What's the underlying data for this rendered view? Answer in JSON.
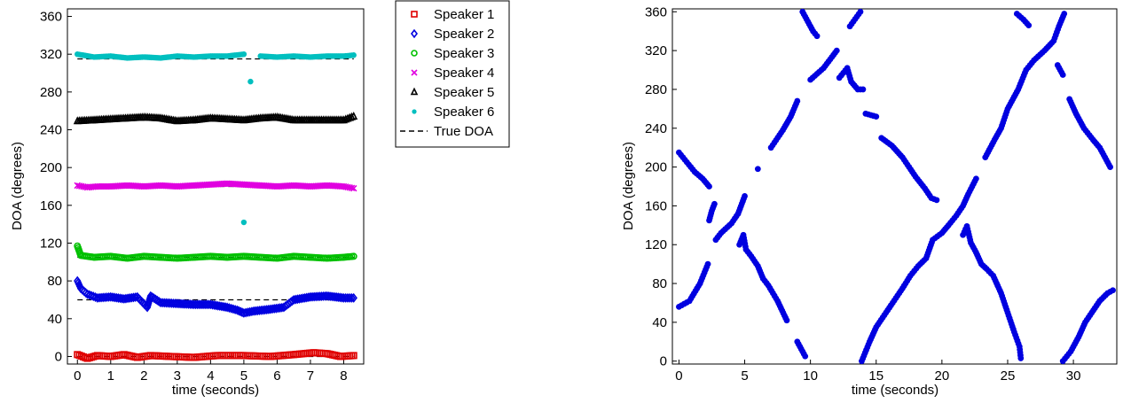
{
  "chart_data": [
    {
      "type": "scatter",
      "xlabel": "time (seconds)",
      "ylabel": "DOA (degrees)",
      "xlim": [
        -0.3,
        8.6
      ],
      "ylim": [
        -8,
        368
      ],
      "xticks": [
        0,
        1,
        2,
        3,
        4,
        5,
        6,
        7,
        8
      ],
      "yticks": [
        0,
        40,
        80,
        120,
        160,
        200,
        240,
        280,
        320,
        360
      ],
      "legend_position": "outside-right",
      "legend": [
        {
          "label": "Speaker 1",
          "marker": "square",
          "color": "#e00000"
        },
        {
          "label": "Speaker 2",
          "marker": "diamond",
          "color": "#0000e0"
        },
        {
          "label": "Speaker 3",
          "marker": "circle",
          "color": "#00c000"
        },
        {
          "label": "Speaker 4",
          "marker": "x",
          "color": "#e000e0"
        },
        {
          "label": "Speaker 5",
          "marker": "triangle",
          "color": "#000000"
        },
        {
          "label": "Speaker 6",
          "marker": "dot",
          "color": "#00bfbf"
        },
        {
          "label": "True DOA",
          "marker": "dashed-line",
          "color": "#000000"
        }
      ],
      "true_doa": [
        0,
        60,
        105,
        180,
        250,
        315
      ],
      "series": [
        {
          "color": "#e00000",
          "marker": "square",
          "points": [
            [
              0,
              2
            ],
            [
              0.3,
              -2
            ],
            [
              0.6,
              1
            ],
            [
              1,
              0
            ],
            [
              1.4,
              2
            ],
            [
              1.8,
              -1
            ],
            [
              2.2,
              1
            ],
            [
              2.8,
              0
            ],
            [
              3.5,
              -1
            ],
            [
              4.2,
              1
            ],
            [
              5,
              1
            ],
            [
              5.8,
              0
            ],
            [
              6.5,
              2
            ],
            [
              7.1,
              4
            ],
            [
              7.5,
              3
            ],
            [
              7.9,
              0
            ],
            [
              8.3,
              1
            ]
          ]
        },
        {
          "color": "#0000e0",
          "marker": "diamond",
          "points": [
            [
              0,
              80
            ],
            [
              0.1,
              72
            ],
            [
              0.3,
              66
            ],
            [
              0.6,
              62
            ],
            [
              1,
              63
            ],
            [
              1.4,
              61
            ],
            [
              1.8,
              63
            ],
            [
              2.1,
              52
            ],
            [
              2.2,
              64
            ],
            [
              2.5,
              57
            ],
            [
              3,
              56
            ],
            [
              3.5,
              55
            ],
            [
              4,
              55
            ],
            [
              4.5,
              52
            ],
            [
              4.8,
              49
            ],
            [
              5,
              46
            ],
            [
              5.3,
              48
            ],
            [
              5.8,
              50
            ],
            [
              6.2,
              52
            ],
            [
              6.5,
              60
            ],
            [
              7,
              63
            ],
            [
              7.5,
              64
            ],
            [
              8,
              62
            ],
            [
              8.3,
              62
            ]
          ]
        },
        {
          "color": "#00c000",
          "marker": "circle",
          "points": [
            [
              0,
              117
            ],
            [
              0.1,
              107
            ],
            [
              0.5,
              105
            ],
            [
              1,
              106
            ],
            [
              1.5,
              104
            ],
            [
              2,
              106
            ],
            [
              2.5,
              105
            ],
            [
              3,
              104
            ],
            [
              3.5,
              105
            ],
            [
              4,
              106
            ],
            [
              4.5,
              105
            ],
            [
              5,
              106
            ],
            [
              5.5,
              105
            ],
            [
              6,
              104
            ],
            [
              6.5,
              106
            ],
            [
              7,
              105
            ],
            [
              7.5,
              104
            ],
            [
              8,
              105
            ],
            [
              8.3,
              106
            ]
          ]
        },
        {
          "color": "#e000e0",
          "marker": "x",
          "points": [
            [
              0,
              181
            ],
            [
              0.3,
              179
            ],
            [
              0.6,
              180
            ],
            [
              1,
              180
            ],
            [
              1.5,
              181
            ],
            [
              2,
              180
            ],
            [
              2.5,
              181
            ],
            [
              3,
              180
            ],
            [
              3.5,
              181
            ],
            [
              4,
              182
            ],
            [
              4.5,
              183
            ],
            [
              5,
              182
            ],
            [
              5.5,
              181
            ],
            [
              6,
              180
            ],
            [
              6.5,
              181
            ],
            [
              7,
              180
            ],
            [
              7.5,
              181
            ],
            [
              8,
              180
            ],
            [
              8.3,
              178
            ]
          ]
        },
        {
          "color": "#000000",
          "marker": "triangle",
          "points": [
            [
              0,
              249
            ],
            [
              0.5,
              250
            ],
            [
              1,
              251
            ],
            [
              1.5,
              252
            ],
            [
              2,
              253
            ],
            [
              2.5,
              252
            ],
            [
              3,
              249
            ],
            [
              3.5,
              250
            ],
            [
              4,
              252
            ],
            [
              4.5,
              251
            ],
            [
              5,
              250
            ],
            [
              5.5,
              252
            ],
            [
              6,
              253
            ],
            [
              6.5,
              250
            ],
            [
              7,
              250
            ],
            [
              7.5,
              250
            ],
            [
              8,
              250
            ],
            [
              8.3,
              254
            ]
          ]
        },
        {
          "color": "#00bfbf",
          "marker": "dot",
          "points": [
            [
              0,
              320
            ],
            [
              0.5,
              317
            ],
            [
              1,
              318
            ],
            [
              1.5,
              316
            ],
            [
              2,
              317
            ],
            [
              2.5,
              316
            ],
            [
              3,
              318
            ],
            [
              3.5,
              317
            ],
            [
              4,
              318
            ],
            [
              4.5,
              318
            ],
            [
              5,
              320
            ],
            [
              5.2,
              291
            ],
            [
              5,
              142
            ],
            [
              5.5,
              318
            ],
            [
              6,
              317
            ],
            [
              6.5,
              318
            ],
            [
              7,
              317
            ],
            [
              7.5,
              318
            ],
            [
              8,
              318
            ],
            [
              8.3,
              319
            ]
          ]
        }
      ]
    },
    {
      "type": "scatter",
      "xlabel": "time (seconds)",
      "ylabel": "DOA (degrees)",
      "xlim": [
        -0.5,
        33.3
      ],
      "ylim": [
        -3,
        363
      ],
      "xticks": [
        0,
        5,
        10,
        15,
        20,
        25,
        30
      ],
      "yticks": [
        0,
        40,
        80,
        120,
        160,
        200,
        240,
        280,
        320,
        360
      ],
      "series": [
        {
          "color": "#0000e0",
          "marker": "dot",
          "points": [
            [
              0,
              56
            ],
            [
              0.8,
              62
            ],
            [
              1.6,
              80
            ],
            [
              2.2,
              100
            ],
            [
              2.8,
              125
            ],
            [
              3.2,
              132
            ],
            [
              4,
              142
            ],
            [
              4.5,
              152
            ],
            [
              5,
              170
            ],
            [
              6,
              198
            ],
            [
              7,
              220
            ],
            [
              7.9,
              238
            ],
            [
              8.5,
              252
            ],
            [
              9,
              268
            ],
            [
              10,
              290
            ],
            [
              11,
              302
            ],
            [
              12,
              320
            ],
            [
              13,
              345
            ],
            [
              13.8,
              360
            ],
            [
              0,
              215
            ],
            [
              0.6,
              205
            ],
            [
              1.2,
              195
            ],
            [
              1.8,
              188
            ],
            [
              2.3,
              180
            ],
            [
              2.3,
              145
            ],
            [
              2.5,
              155
            ],
            [
              2.7,
              162
            ],
            [
              4.6,
              120
            ],
            [
              4.9,
              130
            ],
            [
              5.1,
              115
            ],
            [
              5.5,
              108
            ],
            [
              6,
              98
            ],
            [
              6.4,
              85
            ],
            [
              6.8,
              78
            ],
            [
              7.5,
              62
            ],
            [
              8.2,
              42
            ],
            [
              9,
              20
            ],
            [
              9.6,
              5
            ],
            [
              9.4,
              360
            ],
            [
              9.8,
              350
            ],
            [
              10.2,
              340
            ],
            [
              10.5,
              335
            ],
            [
              12.2,
              292
            ],
            [
              12.8,
              302
            ],
            [
              13.1,
              288
            ],
            [
              13.6,
              280
            ],
            [
              14,
              280
            ],
            [
              14.2,
              255
            ],
            [
              15,
              252
            ],
            [
              15.4,
              230
            ],
            [
              16.2,
              222
            ],
            [
              17,
              210
            ],
            [
              18,
              190
            ],
            [
              18.7,
              178
            ],
            [
              19.2,
              168
            ],
            [
              19.6,
              166
            ],
            [
              13.9,
              0
            ],
            [
              14.5,
              20
            ],
            [
              15,
              35
            ],
            [
              15.5,
              45
            ],
            [
              16,
              55
            ],
            [
              16.5,
              65
            ],
            [
              17,
              75
            ],
            [
              17.6,
              88
            ],
            [
              18.2,
              98
            ],
            [
              18.8,
              106
            ],
            [
              19.3,
              125
            ],
            [
              20,
              132
            ],
            [
              20.5,
              140
            ],
            [
              21.1,
              150
            ],
            [
              21.6,
              160
            ],
            [
              22,
              172
            ],
            [
              22.6,
              188
            ],
            [
              23.3,
              210
            ],
            [
              24,
              228
            ],
            [
              24.5,
              240
            ],
            [
              25,
              260
            ],
            [
              25.8,
              280
            ],
            [
              26.4,
              300
            ],
            [
              27,
              310
            ],
            [
              27.8,
              320
            ],
            [
              28.5,
              330
            ],
            [
              28.9,
              345
            ],
            [
              29.3,
              358
            ],
            [
              21.6,
              130
            ],
            [
              21.9,
              139
            ],
            [
              22.2,
              122
            ],
            [
              22.6,
              112
            ],
            [
              23,
              100
            ],
            [
              23.4,
              95
            ],
            [
              23.9,
              88
            ],
            [
              24.5,
              70
            ],
            [
              25,
              50
            ],
            [
              25.5,
              30
            ],
            [
              25.9,
              15
            ],
            [
              26,
              3
            ],
            [
              25.7,
              358
            ],
            [
              26.2,
              352
            ],
            [
              26.6,
              346
            ],
            [
              28.8,
              305
            ],
            [
              29.2,
              295
            ],
            [
              29.7,
              270
            ],
            [
              30.2,
              255
            ],
            [
              30.8,
              240
            ],
            [
              31.5,
              228
            ],
            [
              32,
              220
            ],
            [
              32.4,
              210
            ],
            [
              32.8,
              200
            ],
            [
              29.2,
              0
            ],
            [
              29.8,
              10
            ],
            [
              30.4,
              25
            ],
            [
              30.9,
              40
            ],
            [
              31.4,
              50
            ],
            [
              32,
              62
            ],
            [
              32.6,
              70
            ],
            [
              33,
              73
            ]
          ]
        }
      ]
    }
  ]
}
